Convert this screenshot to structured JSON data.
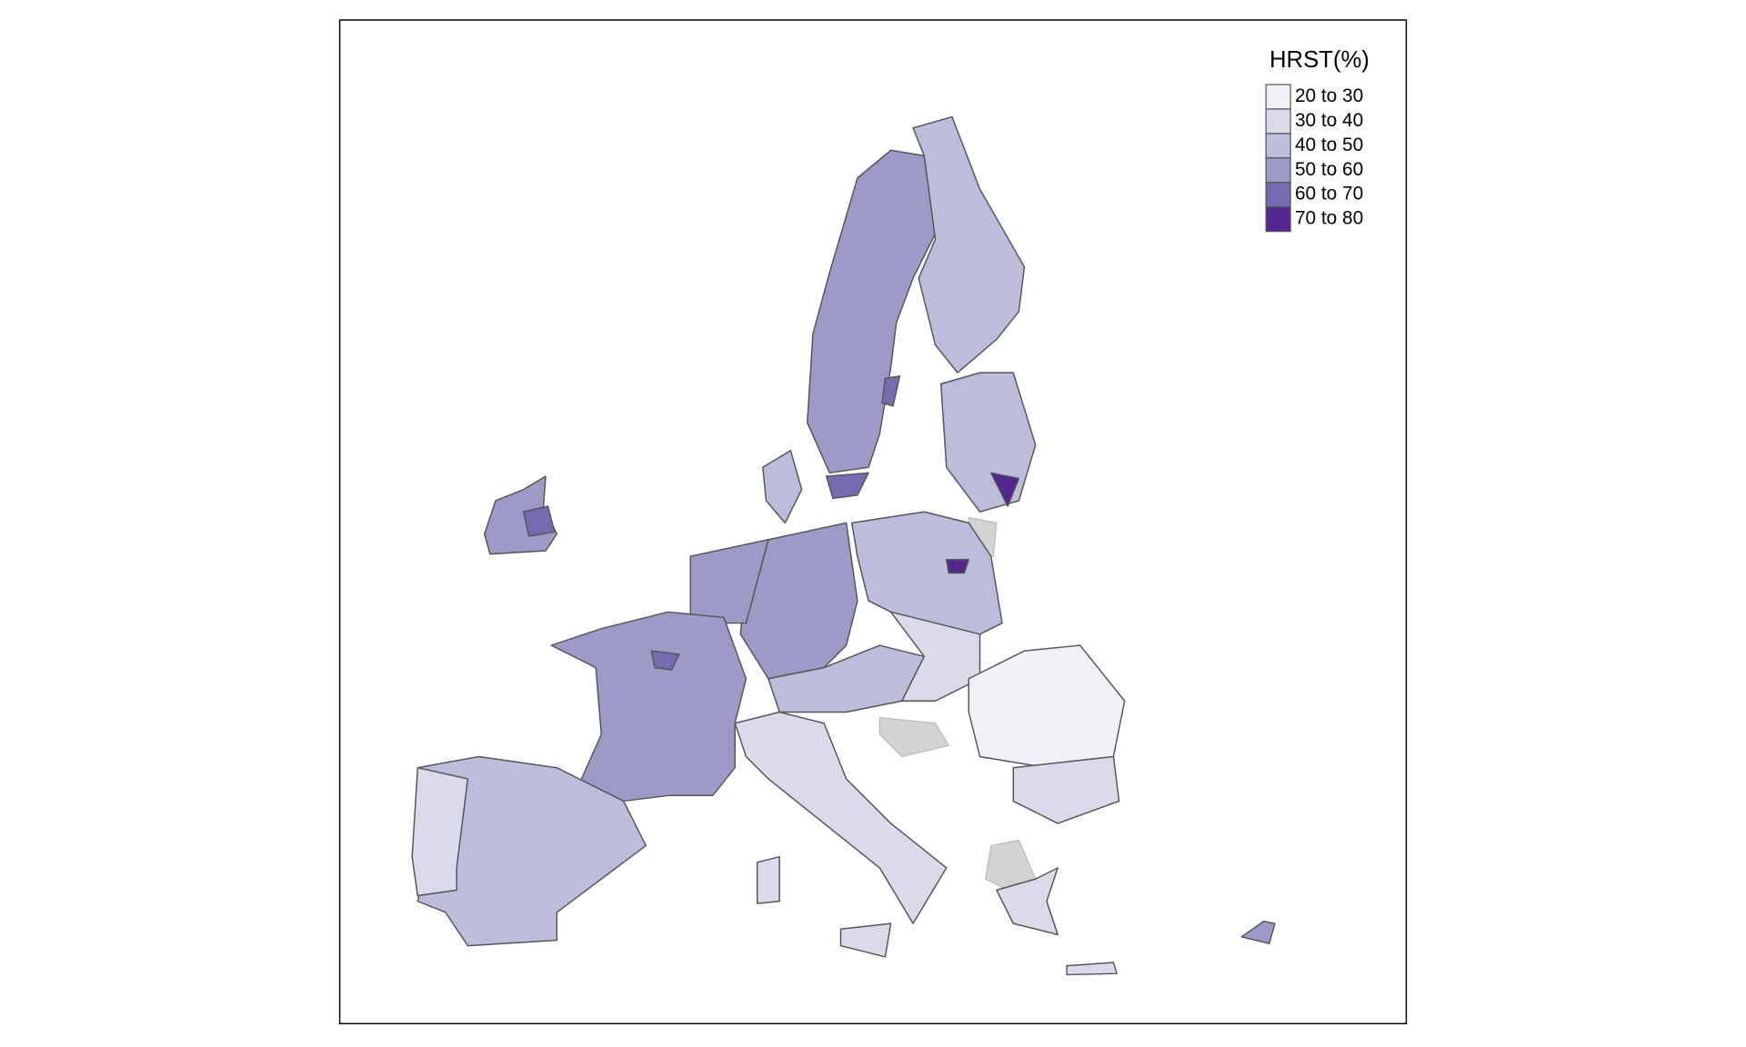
{
  "legend": {
    "title": "HRST(%)",
    "items": [
      {
        "label": "20 to 30",
        "color": "#f2f0f7"
      },
      {
        "label": "30 to 40",
        "color": "#dadaeb"
      },
      {
        "label": "40 to 50",
        "color": "#bcbddc"
      },
      {
        "label": "50 to 60",
        "color": "#9e9ac8"
      },
      {
        "label": "60 to 70",
        "color": "#756bb1"
      },
      {
        "label": "70 to 80",
        "color": "#54278f"
      }
    ]
  }
}
